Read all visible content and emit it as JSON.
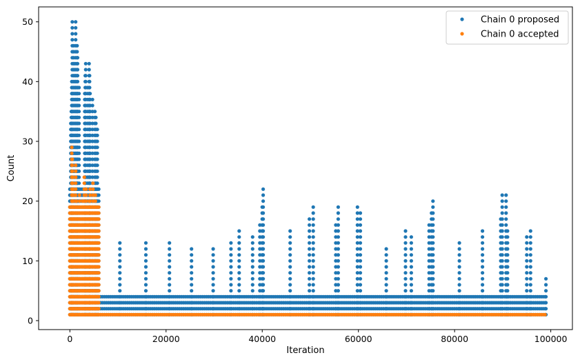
{
  "chart_data": {
    "type": "scatter",
    "title": "",
    "xlabel": "Iteration",
    "ylabel": "Count",
    "xlim": [
      -6500,
      104500
    ],
    "ylim": [
      -1.5,
      52.5
    ],
    "xticks": [
      0,
      20000,
      40000,
      60000,
      80000,
      100000
    ],
    "xtick_labels": [
      "0",
      "20000",
      "40000",
      "60000",
      "80000",
      "100000"
    ],
    "yticks": [
      0,
      10,
      20,
      30,
      40,
      50
    ],
    "ytick_labels": [
      "0",
      "10",
      "20",
      "30",
      "40",
      "50"
    ],
    "grid": false,
    "legend_position": "top-right",
    "series": [
      {
        "name": "Chain 0 proposed",
        "color": "#1f77b4",
        "marker": "circle",
        "bands": [
          {
            "x": [
              0,
              6000
            ],
            "y": [
              1,
              22
            ]
          },
          {
            "x": [
              6000,
              99000
            ],
            "y": [
              1,
              4
            ]
          }
        ],
        "points": [
          [
            500,
            50
          ],
          [
            1200,
            50
          ],
          [
            800,
            46
          ],
          [
            1500,
            46
          ],
          [
            1600,
            44
          ],
          [
            900,
            43
          ],
          [
            3300,
            43
          ],
          [
            4000,
            43
          ],
          [
            3200,
            41
          ],
          [
            4100,
            41
          ],
          [
            1200,
            41
          ],
          [
            400,
            40
          ],
          [
            1900,
            39
          ],
          [
            3700,
            39
          ],
          [
            500,
            38
          ],
          [
            1500,
            38
          ],
          [
            3100,
            38
          ],
          [
            4200,
            38
          ],
          [
            4700,
            37
          ],
          [
            300,
            35
          ],
          [
            5200,
            35
          ],
          [
            5400,
            34
          ],
          [
            5700,
            32
          ],
          [
            200,
            33
          ],
          [
            10400,
            13
          ],
          [
            15800,
            13
          ],
          [
            20700,
            13
          ],
          [
            25300,
            12
          ],
          [
            29800,
            12
          ],
          [
            33500,
            13
          ],
          [
            35200,
            15
          ],
          [
            38000,
            14
          ],
          [
            39500,
            16
          ],
          [
            40000,
            19
          ],
          [
            40200,
            22
          ],
          [
            45800,
            15
          ],
          [
            49800,
            17
          ],
          [
            50600,
            19
          ],
          [
            55300,
            16
          ],
          [
            55800,
            19
          ],
          [
            59800,
            19
          ],
          [
            60400,
            18
          ],
          [
            65800,
            12
          ],
          [
            69800,
            15
          ],
          [
            71000,
            14
          ],
          [
            74700,
            16
          ],
          [
            75200,
            18
          ],
          [
            75500,
            20
          ],
          [
            81000,
            13
          ],
          [
            85800,
            15
          ],
          [
            89600,
            17
          ],
          [
            89900,
            21
          ],
          [
            90700,
            21
          ],
          [
            91000,
            15
          ],
          [
            95000,
            14
          ],
          [
            95800,
            15
          ],
          [
            99000,
            7
          ]
        ]
      },
      {
        "name": "Chain 0 accepted",
        "color": "#ff7f0e",
        "marker": "circle",
        "bands": [
          {
            "x": [
              0,
              6000
            ],
            "y": [
              1,
              19
            ]
          },
          {
            "x": [
              6000,
              99000
            ],
            "y": [
              1,
              1
            ]
          }
        ],
        "points": [
          [
            400,
            29
          ],
          [
            500,
            27
          ],
          [
            1200,
            26
          ],
          [
            600,
            24
          ],
          [
            3000,
            24
          ],
          [
            3400,
            22
          ],
          [
            4200,
            22
          ],
          [
            4800,
            23
          ],
          [
            700,
            22
          ],
          [
            2000,
            21
          ],
          [
            2600,
            20
          ],
          [
            5300,
            21
          ],
          [
            1400,
            20
          ],
          [
            4000,
            20
          ]
        ]
      }
    ]
  }
}
